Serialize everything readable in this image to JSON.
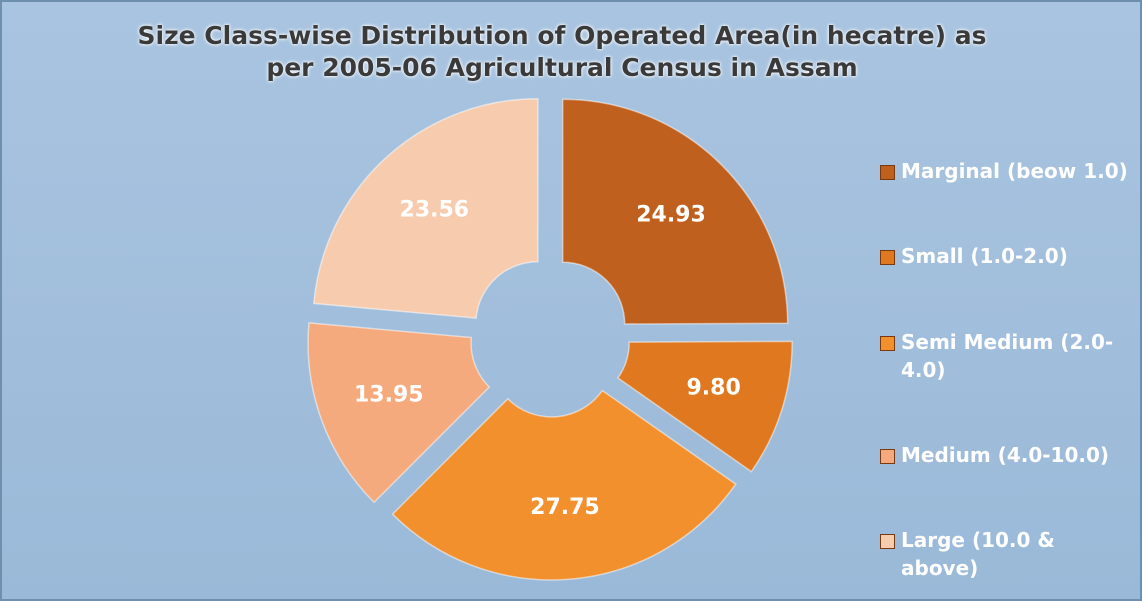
{
  "chart_data": {
    "type": "doughnut",
    "title": "Size Class-wise Distribution of Operated Area(in hecatre) as per 2005-06 Agricultural Census in Assam",
    "categories": [
      "Marginal (beow 1.0)",
      "Small (1.0-2.0)",
      "Semi Medium (2.0-4.0)",
      "Medium (4.0-10.0)",
      "Large (10.0 & above)"
    ],
    "values": [
      24.93,
      9.8,
      27.75,
      13.95,
      23.56
    ],
    "value_labels": [
      "24.93",
      "9.80",
      "27.75",
      "13.95",
      "23.56"
    ],
    "colors": [
      "#c0601e",
      "#e0781f",
      "#f2902e",
      "#f4aa7c",
      "#f7cbad"
    ],
    "legend": "right"
  }
}
